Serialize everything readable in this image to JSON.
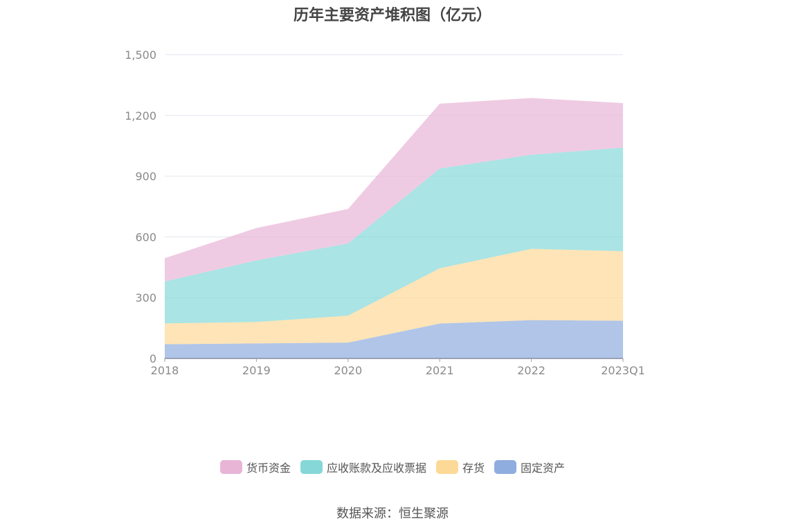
{
  "chart_data": {
    "type": "area",
    "stacked": true,
    "title": "历年主要资产堆积图（亿元）",
    "categories": [
      "2018",
      "2019",
      "2020",
      "2021",
      "2022",
      "2023Q1"
    ],
    "ylim": [
      0,
      1500
    ],
    "yticks": [
      "0",
      "300",
      "600",
      "900",
      "1,200",
      "1,500"
    ],
    "ytick_values": [
      0,
      300,
      600,
      900,
      1200,
      1500
    ],
    "grid": true,
    "legend_position": "bottom",
    "series": [
      {
        "name": "固定资产",
        "color": "#8fadde",
        "values": [
          70,
          74,
          78,
          172,
          189,
          186
        ]
      },
      {
        "name": "存货",
        "color": "#fdd997",
        "values": [
          103,
          106,
          133,
          273,
          352,
          343
        ]
      },
      {
        "name": "应收账款及应收票据",
        "color": "#86d8d8",
        "values": [
          207,
          304,
          357,
          493,
          465,
          512
        ]
      },
      {
        "name": "货币资金",
        "color": "#e8b5d7",
        "values": [
          115,
          160,
          170,
          320,
          280,
          220
        ]
      }
    ]
  },
  "legend_order": [
    "货币资金",
    "应收账款及应收票据",
    "存货",
    "固定资产"
  ],
  "source": "数据来源：恒生聚源"
}
